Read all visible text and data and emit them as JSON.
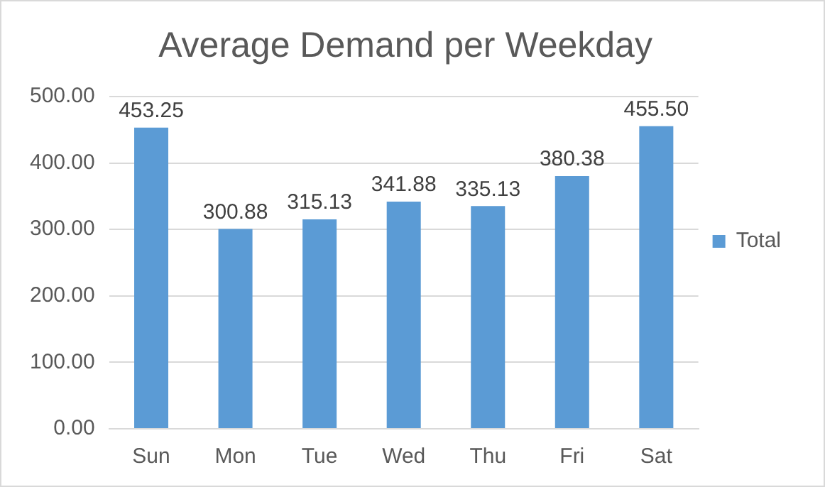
{
  "chart_data": {
    "type": "bar",
    "title": "Average Demand per Weekday",
    "categories": [
      "Sun",
      "Mon",
      "Tue",
      "Wed",
      "Thu",
      "Fri",
      "Sat"
    ],
    "series": [
      {
        "name": "Total",
        "color": "#5b9bd5",
        "values": [
          453.25,
          300.88,
          315.13,
          341.88,
          335.13,
          380.38,
          455.5
        ],
        "value_labels": [
          "453.25",
          "300.88",
          "315.13",
          "341.88",
          "335.13",
          "380.38",
          "455.50"
        ]
      }
    ],
    "ylim": [
      0,
      500
    ],
    "yticks": [
      {
        "value": 0,
        "label": "0.00"
      },
      {
        "value": 100,
        "label": "100.00"
      },
      {
        "value": 200,
        "label": "200.00"
      },
      {
        "value": 300,
        "label": "300.00"
      },
      {
        "value": 400,
        "label": "400.00"
      },
      {
        "value": 500,
        "label": "500.00"
      }
    ],
    "grid": "y",
    "legend": "right"
  }
}
